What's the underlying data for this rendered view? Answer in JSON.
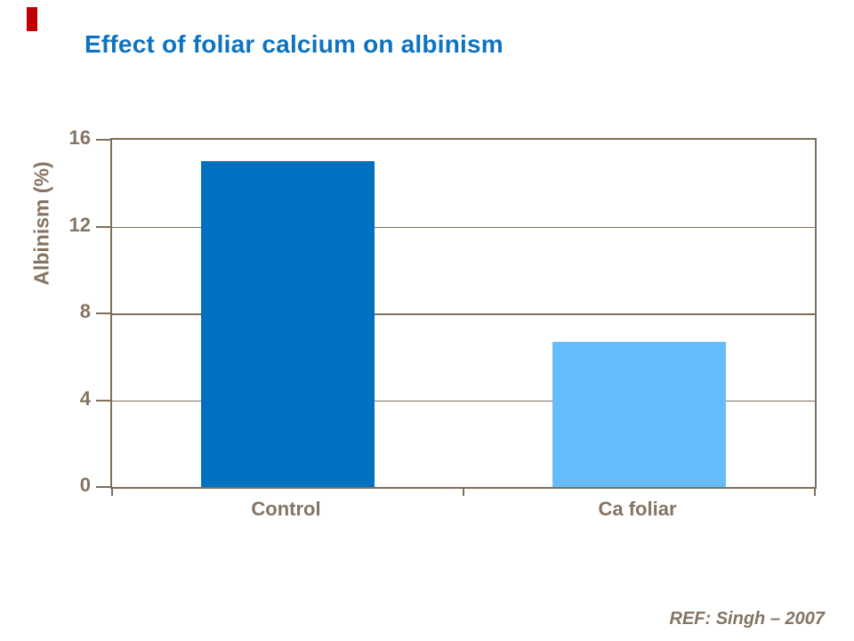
{
  "slide": {
    "title": "Effect of foliar calcium on albinism",
    "title_color": "#0D73C0",
    "accent_color": "#C00000"
  },
  "footer": {
    "ref": "REF: Singh – 2007"
  },
  "chart_data": {
    "type": "bar",
    "title": "Effect of foliar calcium on albinism",
    "categories": [
      "Control",
      "Ca foliar"
    ],
    "values": [
      15,
      6.7
    ],
    "bar_colors": [
      "#0070C0",
      "#66BCFA"
    ],
    "xlabel": "",
    "ylabel": "Albinism (%)",
    "ylim": [
      0,
      16
    ],
    "yticks": [
      0,
      4,
      8,
      12,
      16
    ],
    "grid": "horizontal-major",
    "legend": "none",
    "axis_color": "#7E6E5B",
    "label_color": "#857462",
    "bar_width_fraction": 0.248
  }
}
